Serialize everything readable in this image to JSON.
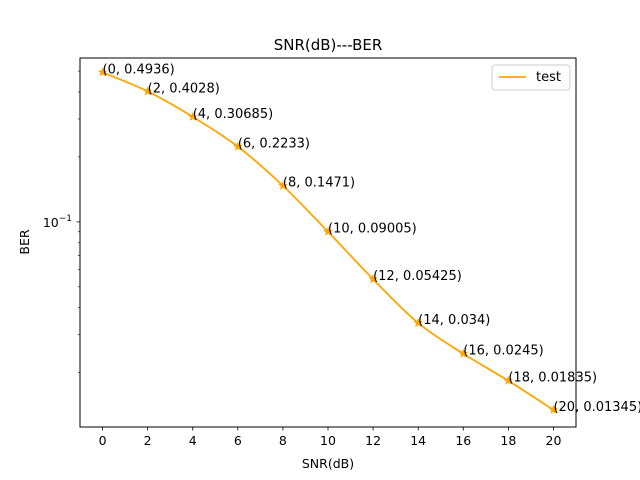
{
  "chart_data": {
    "type": "line",
    "title": "SNR(dB)---BER",
    "xlabel": "SNR(dB)",
    "ylabel": "BER",
    "xlim": [
      -1,
      21
    ],
    "ylim": [
      0.0112,
      0.575
    ],
    "yscale": "log",
    "grid": false,
    "legend_position": "top-right",
    "x_ticks": [
      0,
      2,
      4,
      6,
      8,
      10,
      12,
      14,
      16,
      18,
      20
    ],
    "x_tick_labels": [
      "0",
      "2",
      "4",
      "6",
      "8",
      "10",
      "12",
      "14",
      "16",
      "18",
      "20"
    ],
    "y_tick_label": {
      "base": "10",
      "exponent": "−1",
      "value": 0.1
    },
    "series": [
      {
        "name": "test",
        "color": "#ffa500",
        "marker": "star",
        "x": [
          0,
          2,
          4,
          6,
          8,
          10,
          12,
          14,
          16,
          18,
          20
        ],
        "y": [
          0.4936,
          0.4028,
          0.30685,
          0.2233,
          0.1471,
          0.09005,
          0.05425,
          0.034,
          0.0245,
          0.01835,
          0.01345
        ]
      }
    ],
    "annotations": [
      "(0, 0.4936)",
      "(2, 0.4028)",
      "(4, 0.30685)",
      "(6, 0.2233)",
      "(8, 0.1471)",
      "(10, 0.09005)",
      "(12, 0.05425)",
      "(14, 0.034)",
      "(16, 0.0245)",
      "(18, 0.01835)",
      "(20, 0.01345)"
    ]
  }
}
